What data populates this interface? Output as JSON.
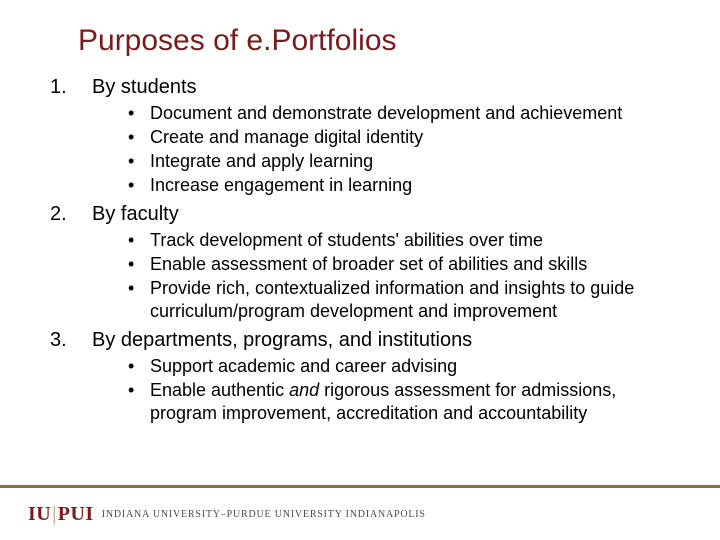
{
  "colors": {
    "title": "#7a1b1b",
    "rule": "#8a6d3b",
    "logo_primary": "#7a1b1b",
    "logo_bar": "#b8956a",
    "subbrand": "#4a4a4a"
  },
  "title": "Purposes of e.Portfolios",
  "sections": [
    {
      "num": "1.",
      "label": "By students",
      "bullets": [
        {
          "text": "Document and demonstrate development and achievement"
        },
        {
          "text": "Create and manage digital identity"
        },
        {
          "text": "Integrate and apply learning"
        },
        {
          "text": "Increase engagement in learning"
        }
      ]
    },
    {
      "num": "2.",
      "label": "By faculty",
      "bullets": [
        {
          "text": "Track development of students' abilities over time"
        },
        {
          "text": "Enable assessment of broader set of abilities and skills"
        },
        {
          "text": "Provide rich, contextualized information and insights to guide curriculum/program development and improvement"
        }
      ]
    },
    {
      "num": "3.",
      "label": "By departments, programs, and institutions",
      "bullets": [
        {
          "text": "Support academic and career advising"
        },
        {
          "html": "Enable authentic <span class=\"italic\">and</span> rigorous assessment for admissions, program improvement, accreditation and accountability"
        }
      ]
    }
  ],
  "footer": {
    "logo_main": "IUPUI",
    "subbrand": "INDIANA UNIVERSITY–PURDUE UNIVERSITY INDIANAPOLIS"
  }
}
